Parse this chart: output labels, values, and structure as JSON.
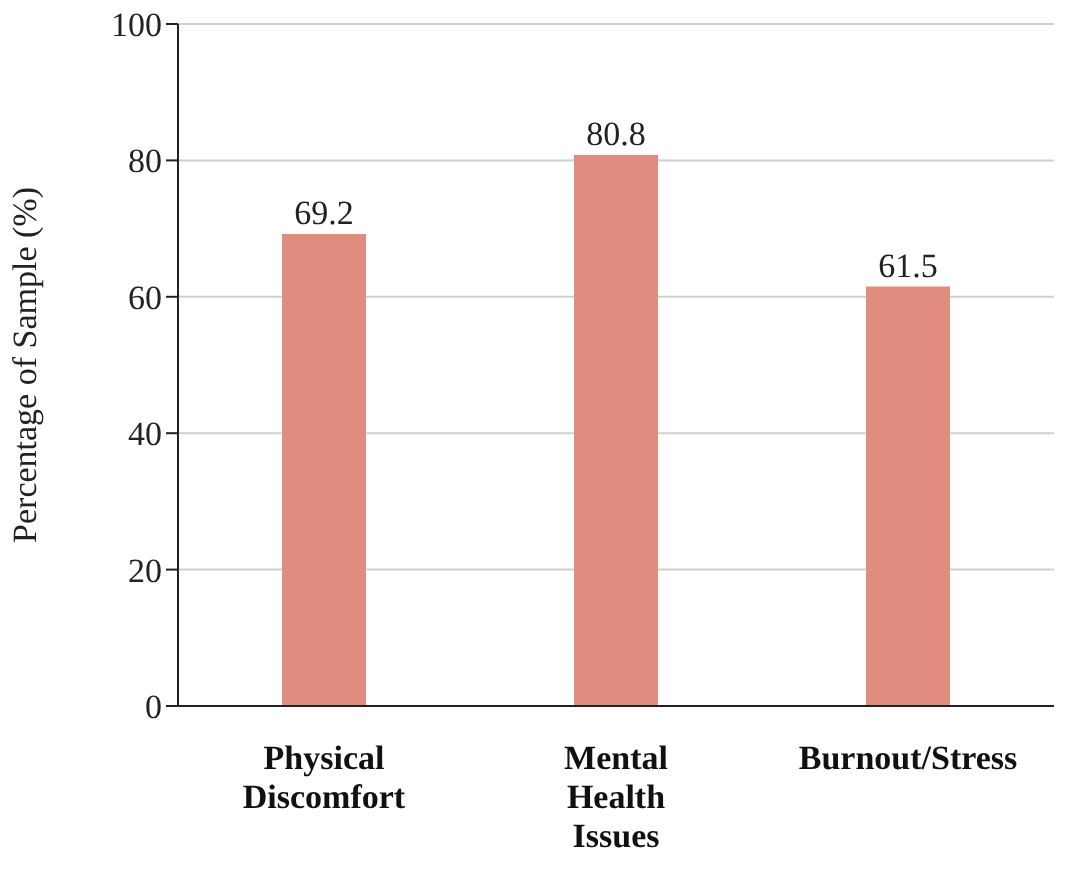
{
  "chart_data": {
    "type": "bar",
    "ylabel": "Percentage of Sample (%)",
    "categories": [
      "Physical Discomfort",
      "Mental Health Issues",
      "Burnout/Stress"
    ],
    "values": [
      69.2,
      80.8,
      61.5
    ],
    "color": "#e08c7e",
    "ylim": [
      0,
      100
    ],
    "yticks": [
      0,
      20,
      40,
      60,
      80,
      100
    ],
    "grid": "y",
    "data_labels": true
  }
}
